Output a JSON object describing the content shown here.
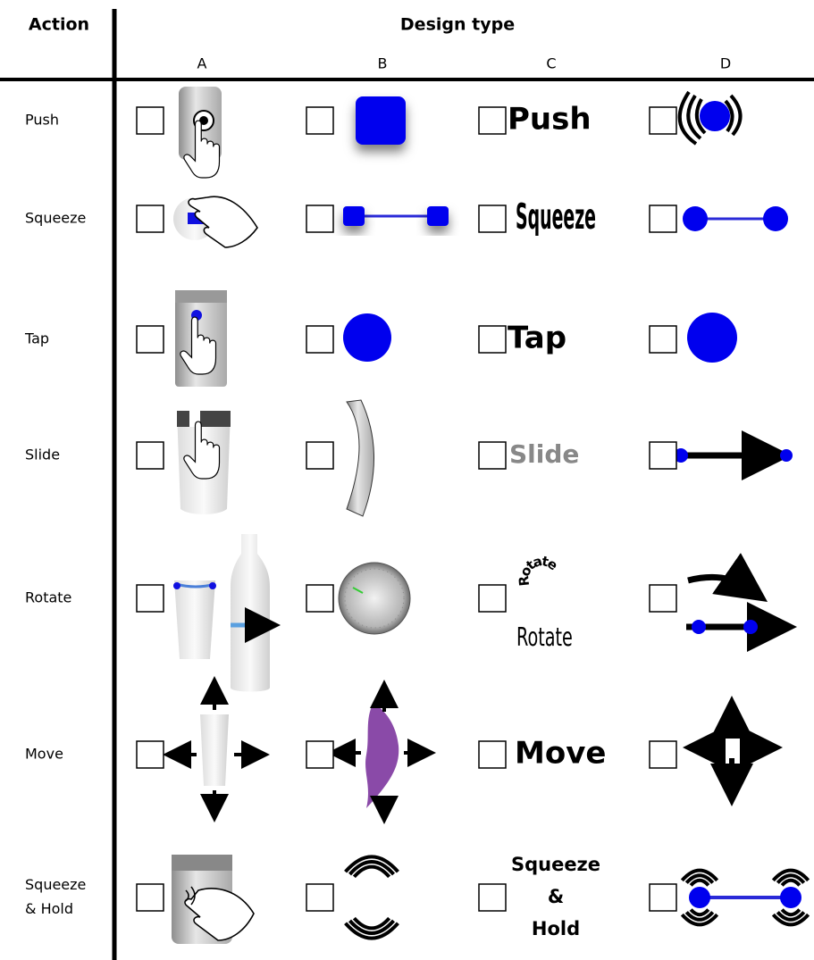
{
  "header": {
    "action": "Action",
    "design_type": "Design type",
    "columns": [
      "A",
      "B",
      "C",
      "D"
    ]
  },
  "rows": [
    {
      "action": [
        "Push"
      ],
      "c_label": [
        "Push"
      ]
    },
    {
      "action": [
        "Squeeze"
      ],
      "c_label": [
        "Squeeze"
      ]
    },
    {
      "action": [
        "Tap"
      ],
      "c_label": [
        "Tap"
      ]
    },
    {
      "action": [
        "Slide"
      ],
      "c_label": [
        "Slide"
      ]
    },
    {
      "action": [
        "Rotate"
      ],
      "c_label": [
        "Rotate"
      ],
      "c_curved_label": "Rotate"
    },
    {
      "action": [
        "Move"
      ],
      "c_label": [
        "Move"
      ]
    },
    {
      "action": [
        "Squeeze",
        "& Hold"
      ],
      "c_label": [
        "Squeeze",
        "&",
        "Hold"
      ]
    }
  ]
}
